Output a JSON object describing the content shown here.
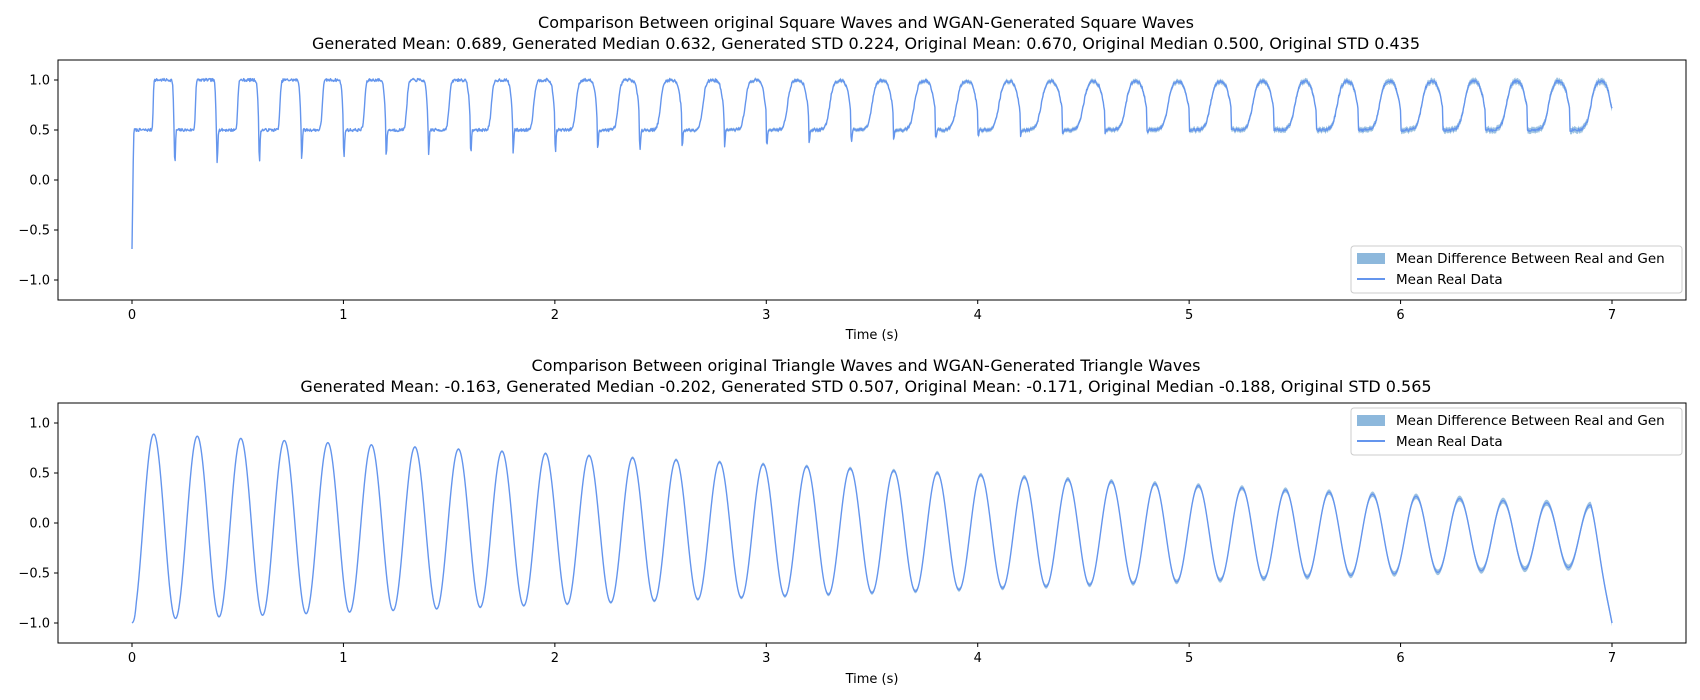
{
  "chart_data": [
    {
      "type": "line",
      "title": "Comparison Between original Square Waves and WGAN-Generated Square Waves",
      "subtitle": "Generated Mean: 0.689, Generated Median 0.632, Generated STD 0.224, Original Mean: 0.670, Original Median 0.500, Original STD 0.435",
      "xlabel": "Time (s)",
      "ylabel": "",
      "xlim": [
        -0.35,
        7.35
      ],
      "ylim": [
        -1.2,
        1.2
      ],
      "xticks": [
        0,
        1,
        2,
        3,
        4,
        5,
        6,
        7
      ],
      "xtick_labels": [
        "0",
        "1",
        "2",
        "3",
        "4",
        "5",
        "6",
        "7"
      ],
      "yticks": [
        -1.0,
        -0.5,
        0.0,
        0.5,
        1.0
      ],
      "ytick_labels": [
        "−1.0",
        "−0.5",
        "0.0",
        "0.5",
        "1.0"
      ],
      "grid": false,
      "legend_position": "lower-right",
      "duration": 7,
      "wave": "square",
      "cycles": 35,
      "start_value": -0.69,
      "low": 0.5,
      "high": 1.0,
      "series": [
        {
          "name": "Mean Difference Between Real and Gen",
          "kind": "band",
          "color": "#8db8dc"
        },
        {
          "name": "Mean Real Data",
          "kind": "line",
          "color": "#6495ed"
        }
      ]
    },
    {
      "type": "line",
      "title": "Comparison Between original Triangle Waves and WGAN-Generated Triangle Waves",
      "subtitle": "Generated Mean: -0.163, Generated Median -0.202, Generated STD 0.507, Original Mean: -0.171, Original Median -0.188, Original STD 0.565",
      "xlabel": "Time (s)",
      "ylabel": "",
      "xlim": [
        -0.35,
        7.35
      ],
      "ylim": [
        -1.2,
        1.2
      ],
      "xticks": [
        0,
        1,
        2,
        3,
        4,
        5,
        6,
        7
      ],
      "xtick_labels": [
        "0",
        "1",
        "2",
        "3",
        "4",
        "5",
        "6",
        "7"
      ],
      "yticks": [
        -1.0,
        -0.5,
        0.0,
        0.5,
        1.0
      ],
      "ytick_labels": [
        "−1.0",
        "−0.5",
        "0.0",
        "0.5",
        "1.0"
      ],
      "grid": false,
      "legend_position": "upper-right",
      "duration": 7,
      "wave": "triangle",
      "cycles": 34,
      "start_value": -1.0,
      "end_value": -1.0,
      "peak_start": 0.9,
      "peak_end": 0.17,
      "trough_start": -0.97,
      "trough_end": -0.43,
      "series": [
        {
          "name": "Mean Difference Between Real and Gen",
          "kind": "band",
          "color": "#8db8dc"
        },
        {
          "name": "Mean Real Data",
          "kind": "line",
          "color": "#6495ed"
        }
      ]
    }
  ]
}
